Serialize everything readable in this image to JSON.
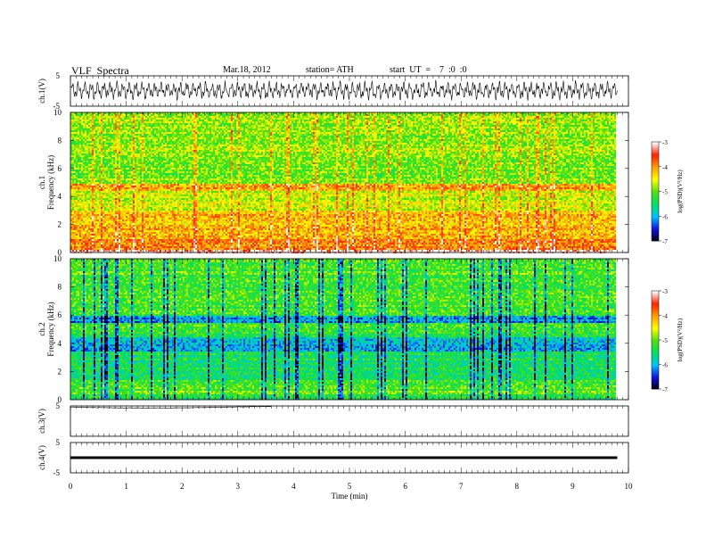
{
  "header": {
    "title": "VLF  Spectra",
    "date": "Mar.18, 2012",
    "station": "station= ATH",
    "start": "start  UT  =    7  :0  :0"
  },
  "colors": {
    "waveform": "#000000",
    "colormap": [
      "#000000",
      "#1010e0",
      "#00c0ff",
      "#00e060",
      "#50e010",
      "#ffff00",
      "#ffa000",
      "#ff2000",
      "#ffffff"
    ]
  },
  "chart_data": [
    {
      "type": "line",
      "panel": "ch1",
      "ylabel": "ch.1(V)",
      "ylim": [
        -5,
        5
      ],
      "yticks": [
        "5",
        "-5"
      ],
      "description_values": "oscillating signal approx. -2.5 to 3 V over full window",
      "x_range": [
        0,
        9.8
      ]
    },
    {
      "type": "heatmap",
      "panel": "ch1-spectrogram",
      "ylabel": "ch.1\nFrequency  (kHz)",
      "ylim": [
        0,
        10
      ],
      "yticks": [
        "0",
        "2",
        "4",
        "6",
        "8",
        "10"
      ],
      "colorbar": {
        "label": "log(PSD)(V²/Hz)",
        "range": [
          -7,
          -3
        ],
        "ticks": [
          "-3",
          "-4",
          "-5",
          "-6",
          "-7"
        ]
      },
      "band_levels_khz": [
        [
          0,
          0.3,
          -3.0
        ],
        [
          0.3,
          1.0,
          -3.8
        ],
        [
          1.0,
          2.2,
          -4.1
        ],
        [
          2.2,
          3.0,
          -4.2
        ],
        [
          3.0,
          4.5,
          -4.6
        ],
        [
          4.5,
          5.0,
          -4.1
        ],
        [
          5.0,
          7.0,
          -4.9
        ],
        [
          7.0,
          10.0,
          -4.8
        ]
      ]
    },
    {
      "type": "heatmap",
      "panel": "ch2-spectrogram",
      "ylabel": "ch.2\nFrequency  (kHz)",
      "ylim": [
        0,
        10
      ],
      "yticks": [
        "0",
        "2",
        "4",
        "6",
        "8",
        "10"
      ],
      "colorbar": {
        "label": "log(PSD)(V²/Hz)",
        "range": [
          -7,
          -3
        ],
        "ticks": [
          "-3",
          "-4",
          "-5",
          "-6",
          "-7"
        ]
      },
      "band_levels_khz": [
        [
          0,
          0.5,
          -5.4
        ],
        [
          0.5,
          1.5,
          -5.0
        ],
        [
          1.5,
          3.5,
          -5.4
        ],
        [
          3.5,
          4.5,
          -5.9
        ],
        [
          4.5,
          5.5,
          -5.2
        ],
        [
          5.5,
          6.0,
          -6.0
        ],
        [
          6.0,
          10.0,
          -5.1
        ]
      ]
    },
    {
      "type": "line",
      "panel": "ch3",
      "ylabel": "ch.3(V)",
      "ylim": [
        -5,
        5
      ],
      "yticks": [
        "5"
      ],
      "x_range": [
        0,
        3.6
      ],
      "y_level": 5
    },
    {
      "type": "line",
      "panel": "ch4",
      "ylabel": "ch.4(V)",
      "ylim": [
        -5,
        5
      ],
      "yticks": [
        "5",
        "-5"
      ],
      "x_range": [
        0,
        9.8
      ],
      "y_level": 0
    }
  ],
  "xaxis": {
    "label": "Time  (min)",
    "ticks": [
      "0",
      "1",
      "2",
      "3",
      "4",
      "5",
      "6",
      "7",
      "8",
      "9",
      "10"
    ],
    "range": [
      0,
      10
    ]
  }
}
